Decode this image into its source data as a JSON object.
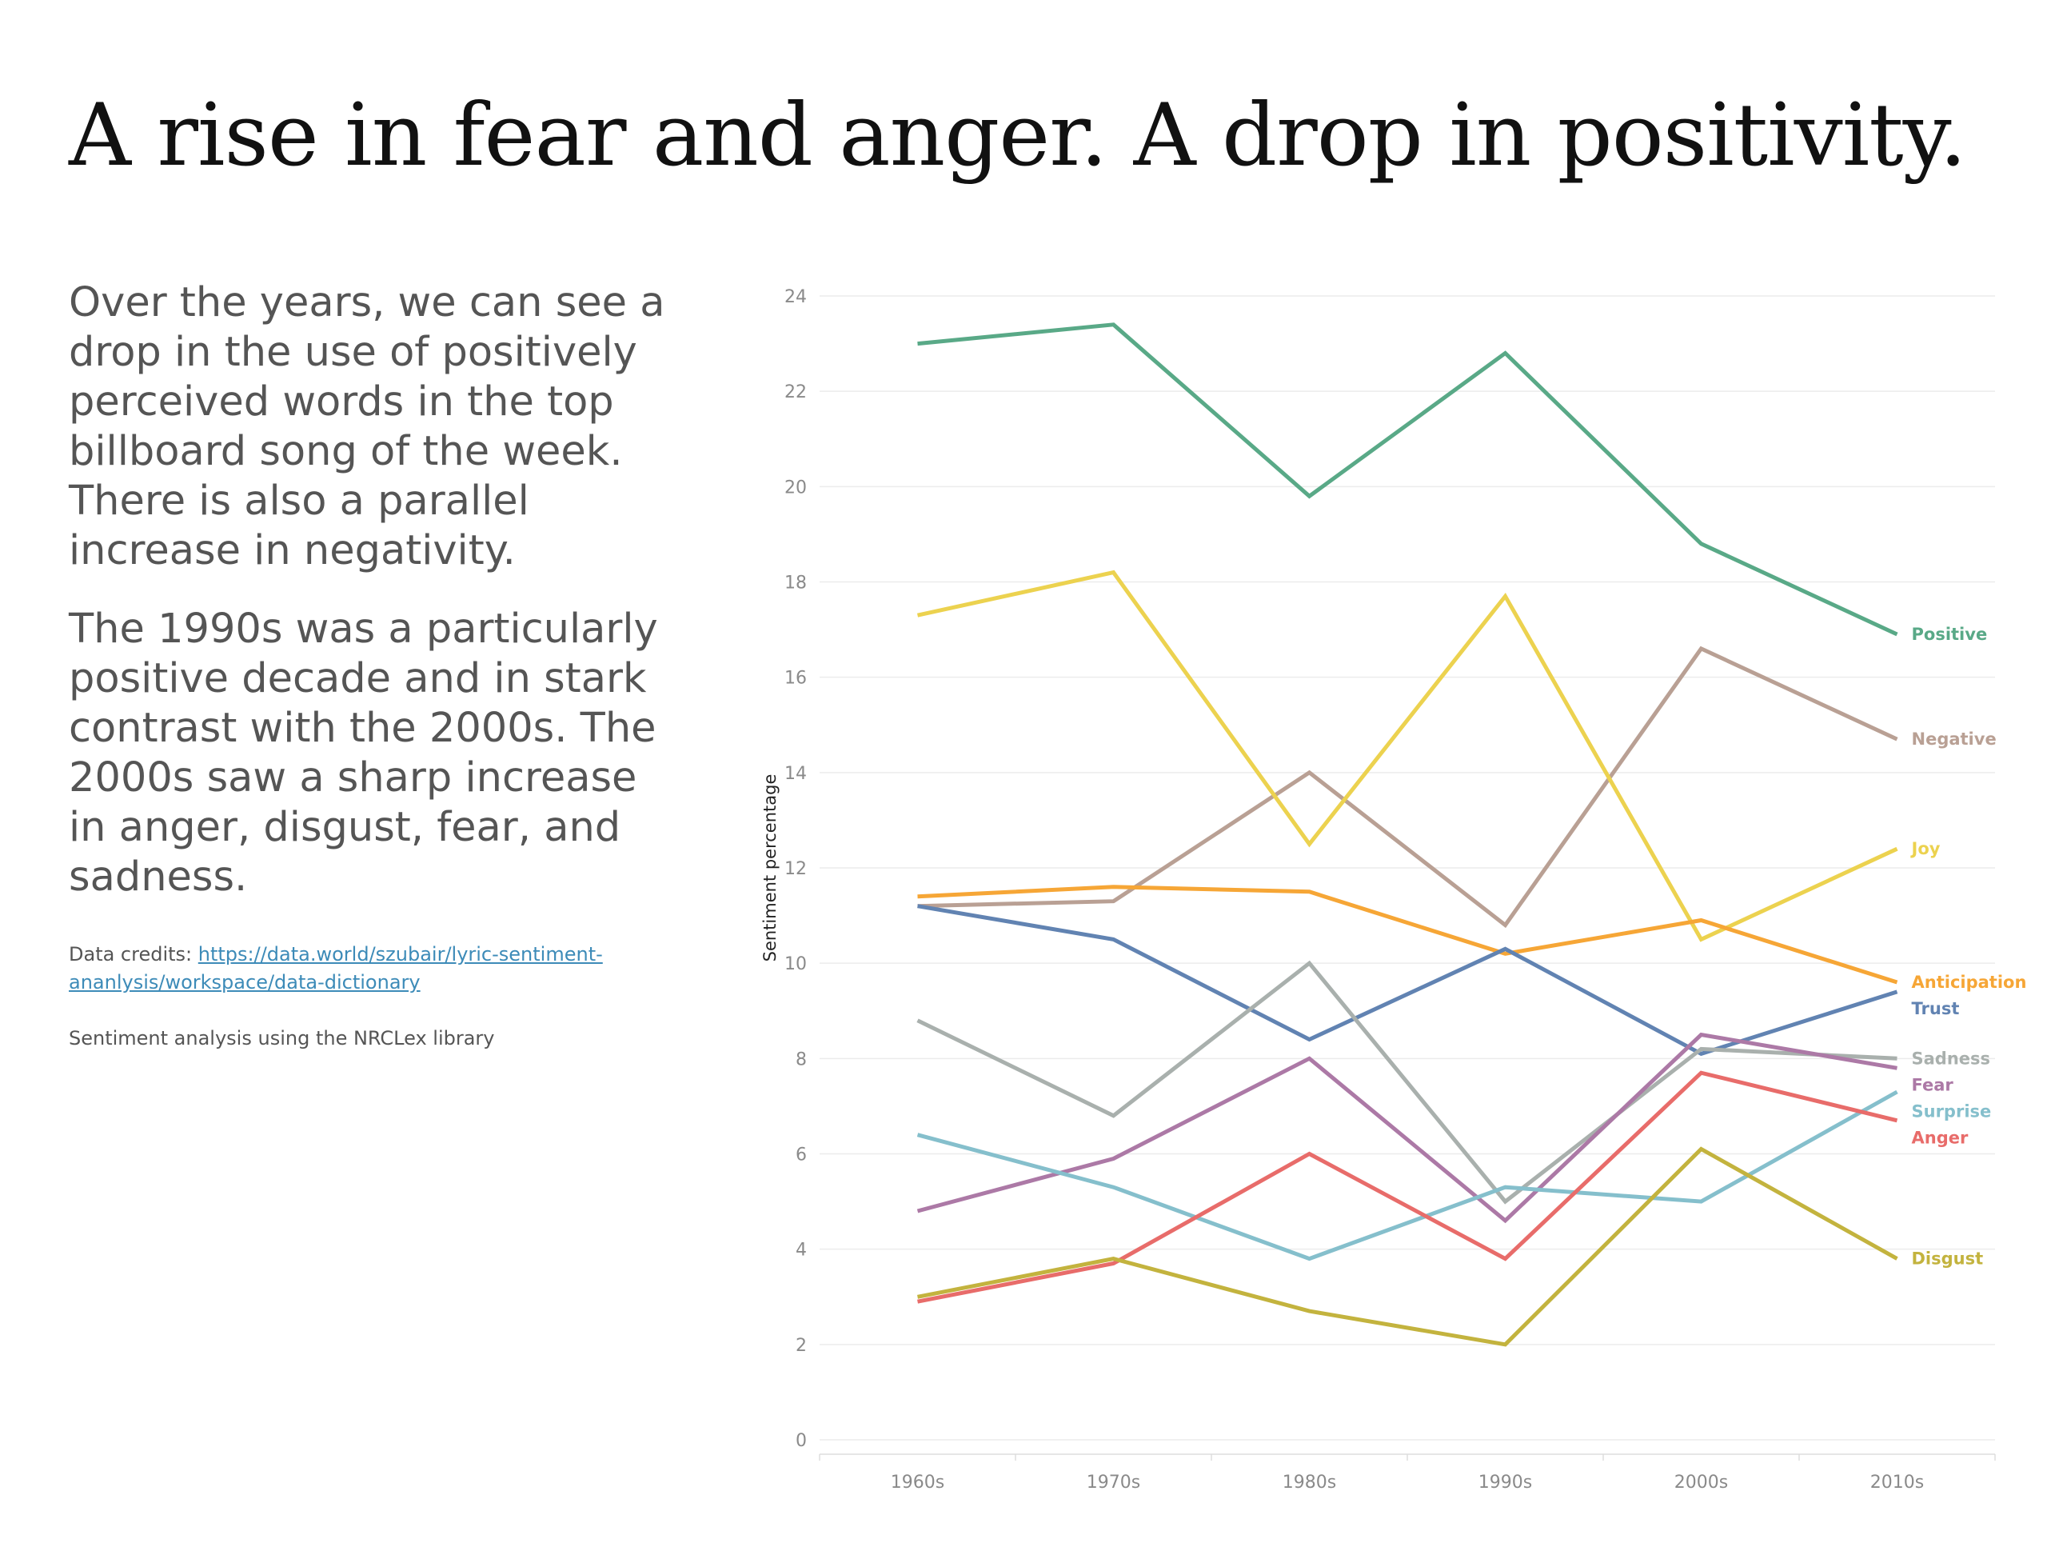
{
  "page": {
    "title": "A rise in fear and anger. A drop in positivity.",
    "paragraphs": [
      "Over the years, we can see a drop in the use of positively perceived words in the top billboard song of the week. There is also a parallel increase in negativity.",
      "The 1990s was a particularly positive decade and in stark contrast with the 2000s. The 2000s saw a sharp increase in anger, disgust, fear, and sadness."
    ],
    "credits_prefix": "Data credits: ",
    "credits_link": "https://data.world/szubair/lyric-sentiment-ananlysis/workspace/data-dictionary",
    "note": "Sentiment analysis using the NRCLex library"
  },
  "chart_data": {
    "type": "line",
    "title": "",
    "xlabel": "",
    "ylabel": "Sentiment percentage",
    "categories": [
      "1960s",
      "1970s",
      "1980s",
      "1990s",
      "2000s",
      "2010s"
    ],
    "ylim": [
      0,
      24
    ],
    "yticks": [
      0,
      2,
      4,
      6,
      8,
      10,
      12,
      14,
      16,
      18,
      20,
      22,
      24
    ],
    "grid": true,
    "legend": "direct labels at line ends",
    "series": [
      {
        "name": "Positive",
        "color": "#59a987",
        "values": [
          23.0,
          23.4,
          19.8,
          22.8,
          18.8,
          16.9
        ]
      },
      {
        "name": "Negative",
        "color": "#b9a094",
        "values": [
          11.2,
          11.3,
          14.0,
          10.8,
          16.6,
          14.7
        ]
      },
      {
        "name": "Joy",
        "color": "#ecd24f",
        "values": [
          17.3,
          18.2,
          12.5,
          17.7,
          10.5,
          12.4
        ]
      },
      {
        "name": "Anticipation",
        "color": "#f6a636",
        "values": [
          11.4,
          11.6,
          11.5,
          10.2,
          10.9,
          9.6
        ]
      },
      {
        "name": "Trust",
        "color": "#6183b2",
        "values": [
          11.2,
          10.5,
          8.4,
          10.3,
          8.1,
          9.4
        ]
      },
      {
        "name": "Sadness",
        "color": "#a9b0ad",
        "values": [
          8.8,
          6.8,
          10.0,
          5.0,
          8.2,
          8.0
        ]
      },
      {
        "name": "Fear",
        "color": "#ac79a6",
        "values": [
          4.8,
          5.9,
          8.0,
          4.6,
          8.5,
          7.8
        ]
      },
      {
        "name": "Surprise",
        "color": "#85bfcc",
        "values": [
          6.4,
          5.3,
          3.8,
          5.3,
          5.0,
          7.3
        ]
      },
      {
        "name": "Anger",
        "color": "#e86c6a",
        "values": [
          2.9,
          3.7,
          6.0,
          3.8,
          7.7,
          6.7
        ]
      },
      {
        "name": "Disgust",
        "color": "#c3b33e",
        "values": [
          3.0,
          3.8,
          2.7,
          2.0,
          6.1,
          3.8
        ]
      }
    ]
  }
}
